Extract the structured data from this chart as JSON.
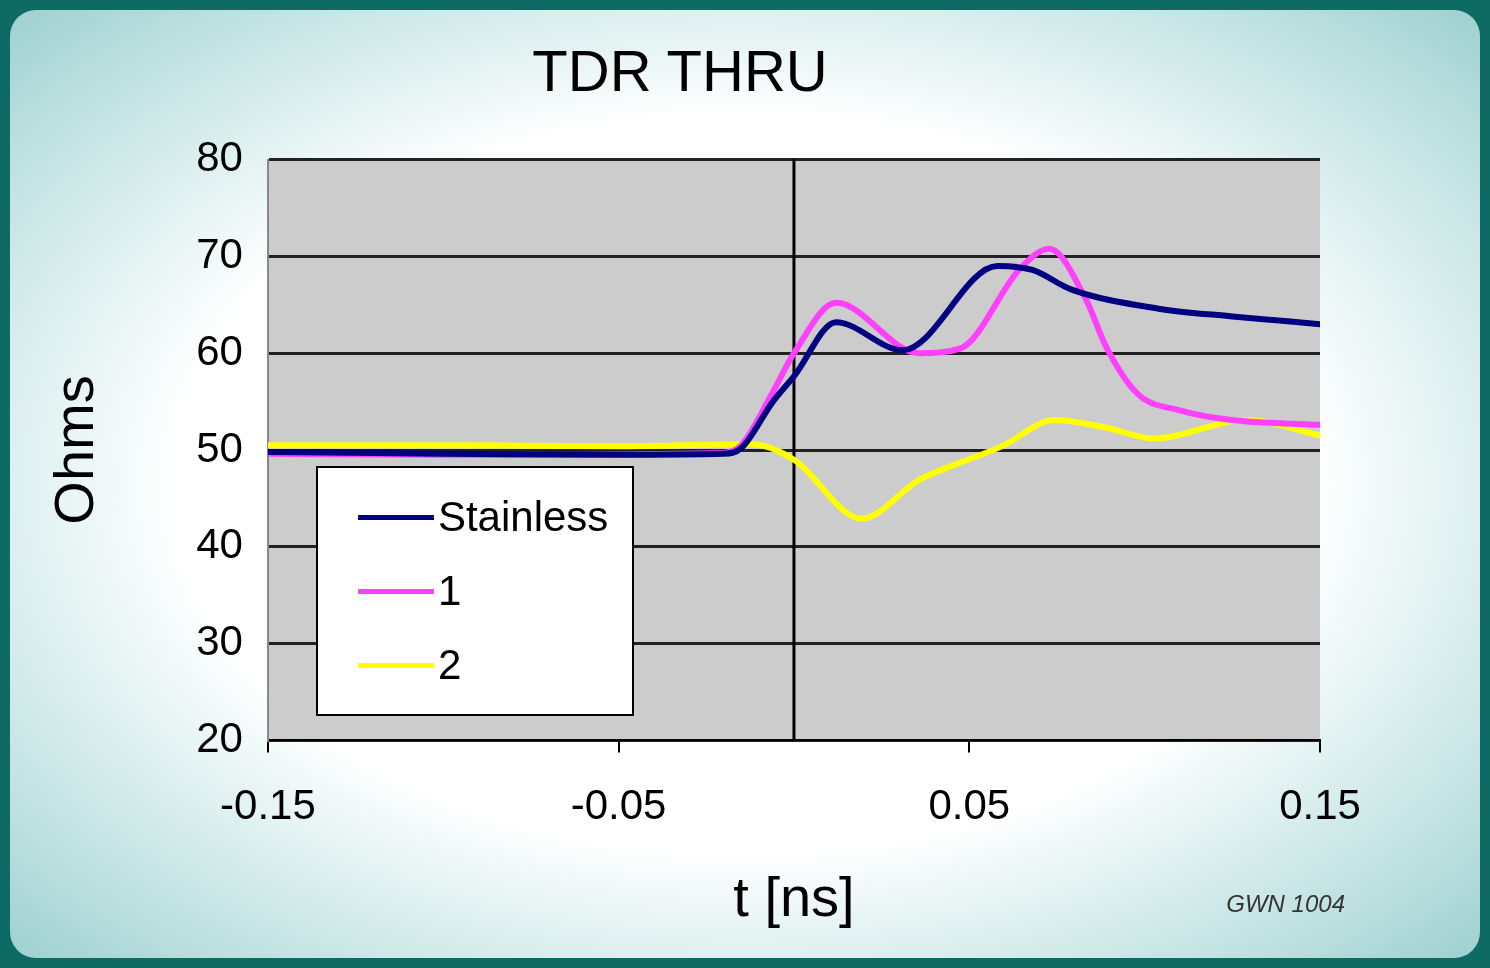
{
  "chart_data": {
    "type": "line",
    "title": "TDR THRU",
    "xlabel": "t [ns]",
    "ylabel": "Ohms",
    "xlim": [
      -0.15,
      0.15
    ],
    "xticks": [
      -0.15,
      -0.05,
      0.05,
      0.15
    ],
    "ylim": [
      20,
      80
    ],
    "yticks": [
      20,
      30,
      40,
      50,
      60,
      70,
      80
    ],
    "grid": "y",
    "legend": "bottom left",
    "marker": "none",
    "line_style": "solid",
    "ref_lines": [
      {
        "axis": "x",
        "value": 0,
        "color": "#000000"
      }
    ],
    "annotations": [
      "GWN 1004"
    ],
    "series": [
      {
        "name": "Stainless",
        "color": "#000080",
        "x": [
          -0.15,
          -0.1,
          -0.05,
          -0.02,
          -0.015,
          -0.006,
          0,
          0.012,
          0.031,
          0.058,
          0.068,
          0.079,
          0.104,
          0.125,
          0.15
        ],
        "values": [
          49.8,
          49.6,
          49.5,
          49.6,
          50.2,
          55,
          57.6,
          63.2,
          60.3,
          69,
          68.6,
          66.6,
          64.6,
          63.8,
          63
        ]
      },
      {
        "name": "1",
        "color": "#ff40ff",
        "x": [
          -0.15,
          -0.1,
          -0.02,
          -0.015,
          -0.006,
          0,
          0.012,
          0.0356,
          0.0475,
          0.0644,
          0.0728,
          0.0832,
          0.0891,
          0.098,
          0.11,
          0.1248,
          0.15
        ],
        "values": [
          49.6,
          49.5,
          49.7,
          50.5,
          56,
          60,
          65.2,
          60,
          60.5,
          68.7,
          70.8,
          65.6,
          60.6,
          55.8,
          54.1,
          53.1,
          52.6
        ]
      },
      {
        "name": "2",
        "color": "#ffff00",
        "x": [
          -0.15,
          -0.1,
          -0.05,
          -0.012,
          0,
          0.0193,
          0.0356,
          0.0475,
          0.0594,
          0.0743,
          0.0891,
          0.1025,
          0.1292,
          0.15
        ],
        "values": [
          50.5,
          50.5,
          50.4,
          50.6,
          49,
          42.9,
          46.9,
          48.7,
          50.4,
          53.1,
          52.3,
          51.2,
          53.1,
          51.5
        ]
      }
    ]
  }
}
